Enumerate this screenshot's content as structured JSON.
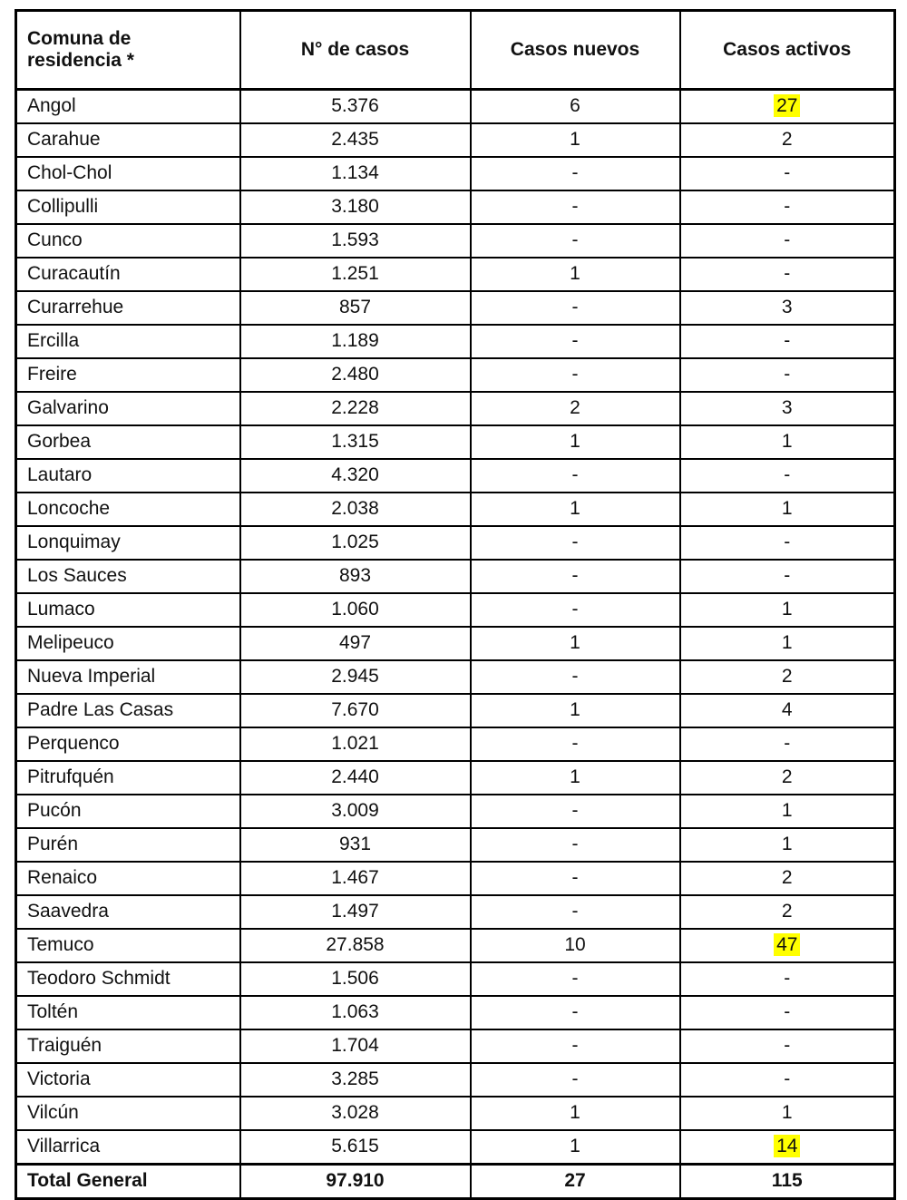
{
  "colors": {
    "highlight": "#FFFF00",
    "border": "#000000",
    "text": "#111111",
    "background": "#FFFFFF"
  },
  "table": {
    "headers": {
      "comuna": "Comuna de residencia *",
      "casos": "N° de casos",
      "nuevos": "Casos nuevos",
      "activos": "Casos activos"
    },
    "rows": [
      {
        "comuna": "Angol",
        "casos": "5.376",
        "nuevos": "6",
        "activos": "27",
        "activos_highlight": true
      },
      {
        "comuna": "Carahue",
        "casos": "2.435",
        "nuevos": "1",
        "activos": "2",
        "activos_highlight": false
      },
      {
        "comuna": "Chol-Chol",
        "casos": "1.134",
        "nuevos": "-",
        "activos": "-",
        "activos_highlight": false
      },
      {
        "comuna": "Collipulli",
        "casos": "3.180",
        "nuevos": "-",
        "activos": "-",
        "activos_highlight": false
      },
      {
        "comuna": "Cunco",
        "casos": "1.593",
        "nuevos": "-",
        "activos": "-",
        "activos_highlight": false
      },
      {
        "comuna": "Curacautín",
        "casos": "1.251",
        "nuevos": "1",
        "activos": "-",
        "activos_highlight": false
      },
      {
        "comuna": "Curarrehue",
        "casos": "857",
        "nuevos": "-",
        "activos": "3",
        "activos_highlight": false
      },
      {
        "comuna": "Ercilla",
        "casos": "1.189",
        "nuevos": "-",
        "activos": "-",
        "activos_highlight": false
      },
      {
        "comuna": "Freire",
        "casos": "2.480",
        "nuevos": "-",
        "activos": "-",
        "activos_highlight": false
      },
      {
        "comuna": "Galvarino",
        "casos": "2.228",
        "nuevos": "2",
        "activos": "3",
        "activos_highlight": false
      },
      {
        "comuna": "Gorbea",
        "casos": "1.315",
        "nuevos": "1",
        "activos": "1",
        "activos_highlight": false
      },
      {
        "comuna": "Lautaro",
        "casos": "4.320",
        "nuevos": "-",
        "activos": "-",
        "activos_highlight": false
      },
      {
        "comuna": "Loncoche",
        "casos": "2.038",
        "nuevos": "1",
        "activos": "1",
        "activos_highlight": false
      },
      {
        "comuna": "Lonquimay",
        "casos": "1.025",
        "nuevos": "-",
        "activos": "-",
        "activos_highlight": false
      },
      {
        "comuna": "Los Sauces",
        "casos": "893",
        "nuevos": "-",
        "activos": "-",
        "activos_highlight": false
      },
      {
        "comuna": "Lumaco",
        "casos": "1.060",
        "nuevos": "-",
        "activos": "1",
        "activos_highlight": false
      },
      {
        "comuna": "Melipeuco",
        "casos": "497",
        "nuevos": "1",
        "activos": "1",
        "activos_highlight": false
      },
      {
        "comuna": "Nueva Imperial",
        "casos": "2.945",
        "nuevos": "-",
        "activos": "2",
        "activos_highlight": false
      },
      {
        "comuna": "Padre Las Casas",
        "casos": "7.670",
        "nuevos": "1",
        "activos": "4",
        "activos_highlight": false
      },
      {
        "comuna": "Perquenco",
        "casos": "1.021",
        "nuevos": "-",
        "activos": "-",
        "activos_highlight": false
      },
      {
        "comuna": "Pitrufquén",
        "casos": "2.440",
        "nuevos": "1",
        "activos": "2",
        "activos_highlight": false
      },
      {
        "comuna": "Pucón",
        "casos": "3.009",
        "nuevos": "-",
        "activos": "1",
        "activos_highlight": false
      },
      {
        "comuna": "Purén",
        "casos": "931",
        "nuevos": "-",
        "activos": "1",
        "activos_highlight": false
      },
      {
        "comuna": "Renaico",
        "casos": "1.467",
        "nuevos": "-",
        "activos": "2",
        "activos_highlight": false
      },
      {
        "comuna": "Saavedra",
        "casos": "1.497",
        "nuevos": "-",
        "activos": "2",
        "activos_highlight": false
      },
      {
        "comuna": "Temuco",
        "casos": "27.858",
        "nuevos": "10",
        "activos": "47",
        "activos_highlight": true
      },
      {
        "comuna": "Teodoro Schmidt",
        "casos": "1.506",
        "nuevos": "-",
        "activos": "-",
        "activos_highlight": false
      },
      {
        "comuna": "Toltén",
        "casos": "1.063",
        "nuevos": "-",
        "activos": "-",
        "activos_highlight": false
      },
      {
        "comuna": "Traiguén",
        "casos": "1.704",
        "nuevos": "-",
        "activos": "-",
        "activos_highlight": false
      },
      {
        "comuna": "Victoria",
        "casos": "3.285",
        "nuevos": "-",
        "activos": "-",
        "activos_highlight": false
      },
      {
        "comuna": "Vilcún",
        "casos": "3.028",
        "nuevos": "1",
        "activos": "1",
        "activos_highlight": false
      },
      {
        "comuna": "Villarrica",
        "casos": "5.615",
        "nuevos": "1",
        "activos": "14",
        "activos_highlight": true
      }
    ],
    "total": {
      "comuna": "Total General",
      "casos": "97.910",
      "nuevos": "27",
      "activos": "115",
      "activos_highlight": false
    }
  }
}
